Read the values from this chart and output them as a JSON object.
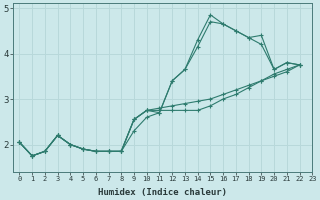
{
  "xlabel": "Humidex (Indice chaleur)",
  "background_color": "#cce8ea",
  "line_color": "#2e7b6e",
  "grid_color": "#b8d8da",
  "xlim": [
    -0.5,
    23
  ],
  "ylim": [
    1.4,
    5.1
  ],
  "yticks": [
    2,
    3,
    4,
    5
  ],
  "xticks": [
    0,
    1,
    2,
    3,
    4,
    5,
    6,
    7,
    8,
    9,
    10,
    11,
    12,
    13,
    14,
    15,
    16,
    17,
    18,
    19,
    20,
    21,
    22,
    23
  ],
  "series": [
    [
      2.05,
      1.75,
      1.85,
      2.2,
      2.0,
      1.9,
      1.85,
      1.85,
      1.85,
      2.3,
      2.6,
      2.7,
      3.4,
      3.65,
      4.3,
      4.85,
      4.65,
      4.5,
      4.35,
      4.4,
      3.65,
      3.8,
      3.75
    ],
    [
      2.05,
      1.75,
      1.85,
      2.2,
      2.0,
      1.9,
      1.85,
      1.85,
      1.85,
      2.55,
      2.75,
      2.7,
      3.4,
      3.65,
      4.15,
      4.7,
      4.65,
      4.5,
      4.35,
      4.2,
      3.65,
      3.8,
      3.75
    ],
    [
      2.05,
      1.75,
      1.85,
      2.2,
      2.0,
      1.9,
      1.85,
      1.85,
      1.85,
      2.55,
      2.75,
      2.75,
      2.75,
      2.75,
      2.75,
      2.85,
      3.0,
      3.1,
      3.25,
      3.4,
      3.55,
      3.65,
      3.75
    ],
    [
      2.05,
      1.75,
      1.85,
      2.2,
      2.0,
      1.9,
      1.85,
      1.85,
      1.85,
      2.55,
      2.75,
      2.8,
      2.85,
      2.9,
      2.95,
      3.0,
      3.1,
      3.2,
      3.3,
      3.4,
      3.5,
      3.6,
      3.75
    ]
  ],
  "x_values": [
    0,
    1,
    2,
    3,
    4,
    5,
    6,
    7,
    8,
    9,
    10,
    11,
    12,
    13,
    14,
    15,
    16,
    17,
    18,
    19,
    20,
    21,
    22
  ]
}
